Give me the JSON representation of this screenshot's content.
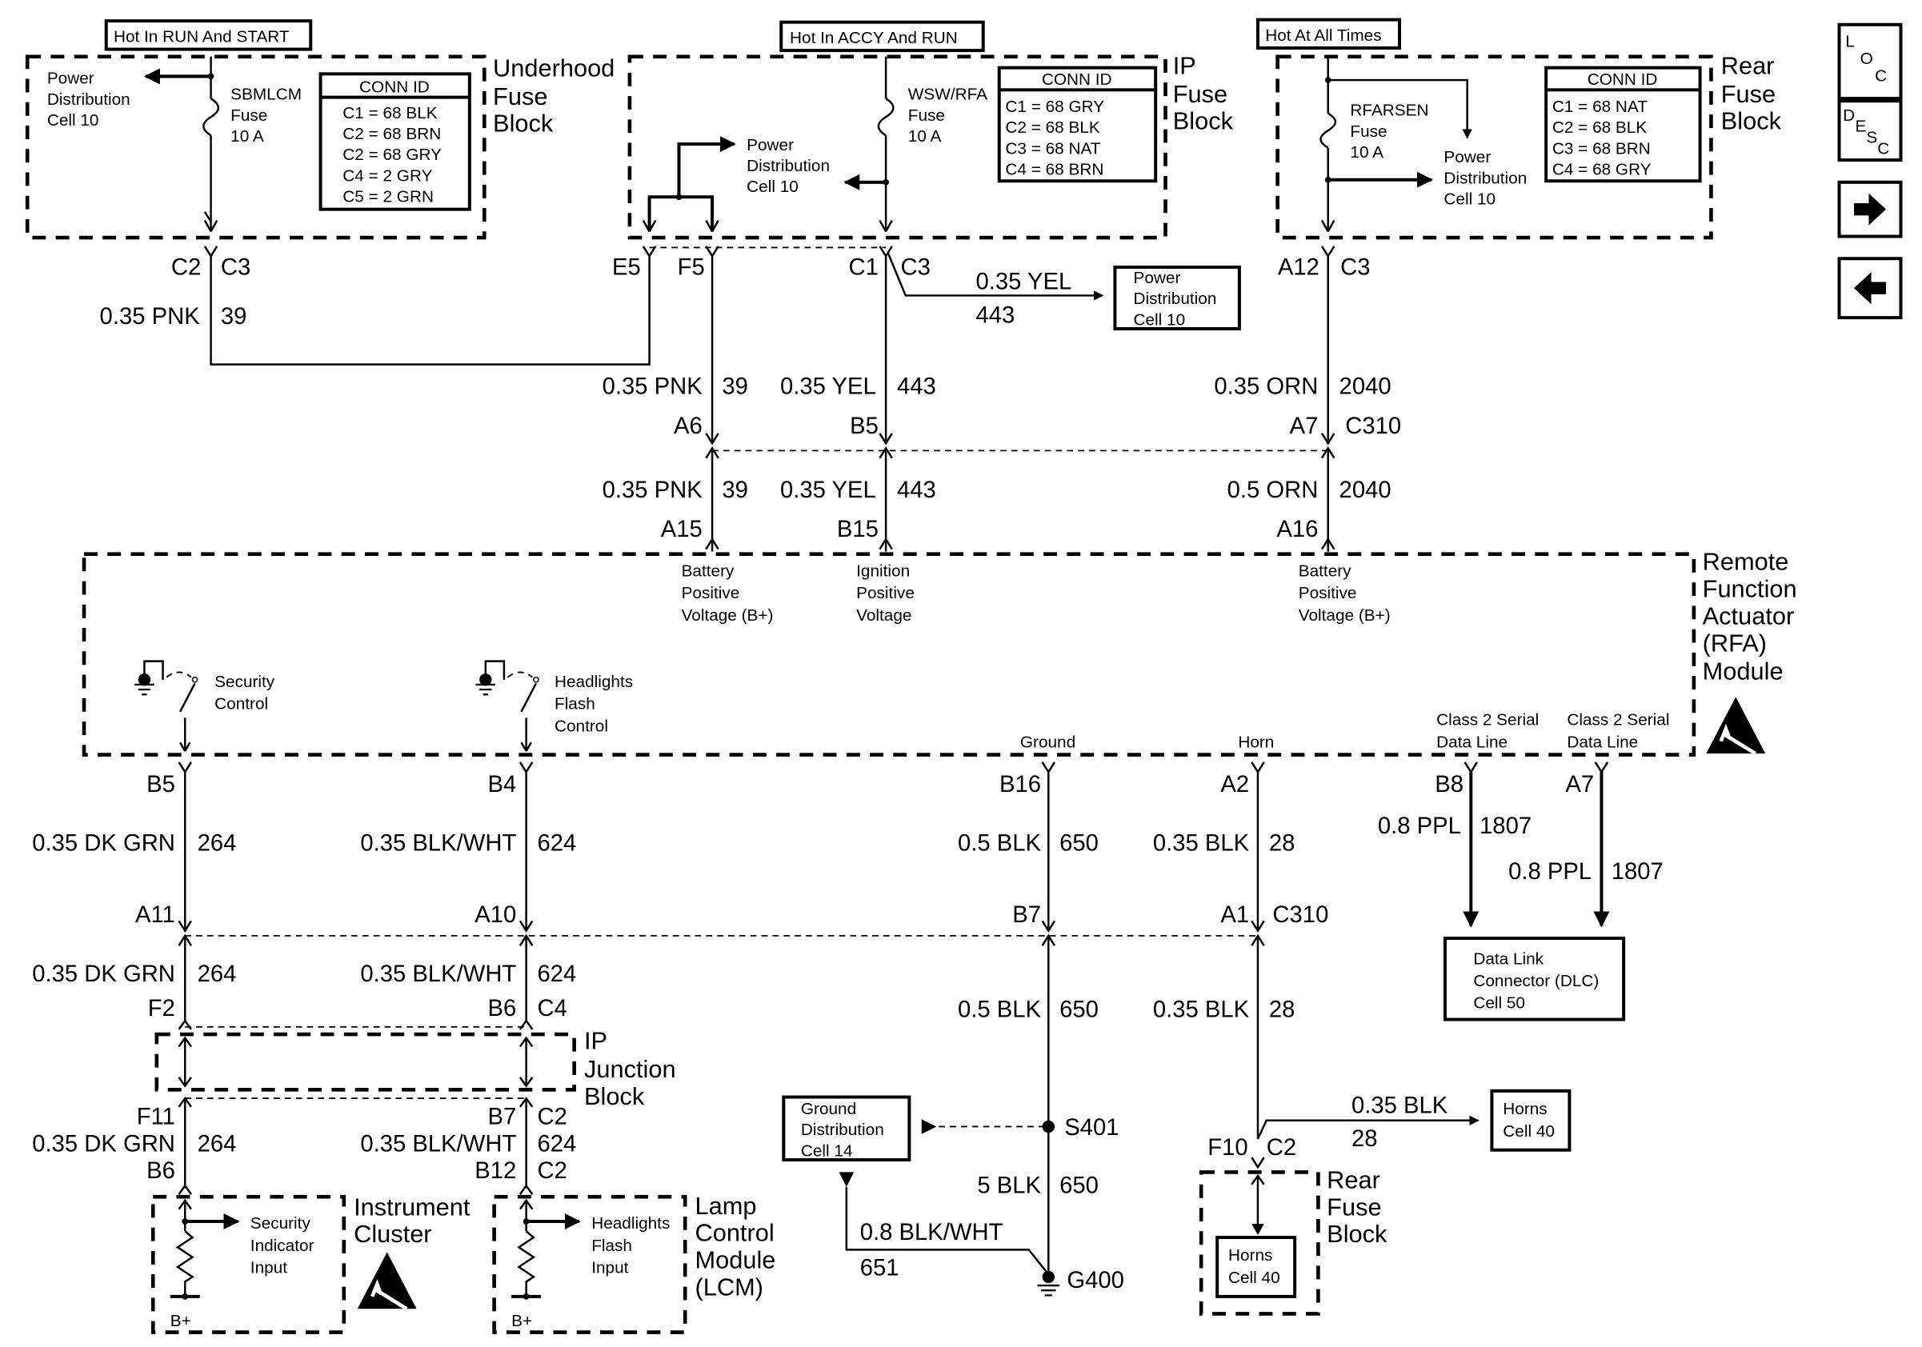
{
  "title_boxes": {
    "run_start": "Hot In RUN And START",
    "accy_run": "Hot In ACCY And RUN",
    "all_times": "Hot At All Times"
  },
  "underhood": {
    "title": [
      "Underhood",
      "Fuse",
      "Block"
    ],
    "pd": [
      "Power",
      "Distribution",
      "Cell 10"
    ],
    "fuse": [
      "SBMLCM",
      "Fuse",
      "10 A"
    ],
    "conn_header": "CONN ID",
    "conn": [
      "C1 = 68 BLK",
      "C2 = 68 BRN",
      "C2 = 68 GRY",
      "C4 = 2 GRY",
      "C5 = 2 GRN"
    ]
  },
  "ip_fuse": {
    "title": [
      "IP",
      "Fuse",
      "Block"
    ],
    "pd": [
      "Power",
      "Distribution",
      "Cell 10"
    ],
    "fuse": [
      "WSW/RFA",
      "Fuse",
      "10 A"
    ],
    "conn_header": "CONN ID",
    "conn": [
      "C1 = 68 GRY",
      "C2 = 68 BLK",
      "C3 = 68 NAT",
      "C4 = 68 BRN"
    ]
  },
  "rear_fuse": {
    "title": [
      "Rear",
      "Fuse",
      "Block"
    ],
    "pd": [
      "Power",
      "Distribution",
      "Cell 10"
    ],
    "fuse": [
      "RFARSEN",
      "Fuse",
      "10 A"
    ],
    "conn_header": "CONN ID",
    "conn": [
      "C1 = 68 NAT",
      "C2 = 68 BLK",
      "C3 = 68 BRN",
      "C4 = 68 GRY"
    ]
  },
  "nav": {
    "loc": [
      "L",
      "O",
      "C"
    ],
    "desc": [
      "D",
      "E",
      "S",
      "C"
    ],
    "next_icon": "arrow-right",
    "prev_icon": "arrow-left"
  },
  "pd_cell10": [
    "Power",
    "Distribution",
    "Cell 10"
  ],
  "connectors": {
    "c2": "C2",
    "c3": "C3",
    "e5": "E5",
    "f5": "F5",
    "c1": "C1",
    "a12": "A12",
    "a6": "A6",
    "b5": "B5",
    "a7": "A7",
    "c310": "C310",
    "a15": "A15",
    "b15": "B15",
    "a16": "A16",
    "b4": "B4",
    "b16": "B16",
    "a2": "A2",
    "b8": "B8",
    "a11": "A11",
    "a10": "A10",
    "b7": "B7",
    "a1": "A1",
    "f2": "F2",
    "b6": "B6",
    "c4": "C4",
    "f11": "F11",
    "b12": "B12",
    "f10": "F10",
    "s401": "S401",
    "g400": "G400"
  },
  "wires": {
    "pnk": "0.35 PNK",
    "n39": "39",
    "yel": "0.35 YEL",
    "n443": "443",
    "orn035": "0.35 ORN",
    "orn05": "0.5 ORN",
    "n2040": "2040",
    "dkgrn": "0.35 DK GRN",
    "n264": "264",
    "blkwht": "0.35 BLK/WHT",
    "n624": "624",
    "blk05": "0.5 BLK",
    "n650": "650",
    "blk035": "0.35 BLK",
    "n28": "28",
    "ppl": "0.8 PPL",
    "n1807": "1807",
    "blk5": "5 BLK",
    "blkwht08": "0.8 BLK/WHT",
    "n651": "651"
  },
  "rfa": {
    "title": [
      "Remote",
      "Function",
      "Actuator",
      "(RFA)",
      "Module"
    ],
    "bat": [
      "Battery",
      "Positive",
      "Voltage (B+)"
    ],
    "ign": [
      "Ignition",
      "Positive",
      "Voltage"
    ],
    "sec": [
      "Security",
      "Control"
    ],
    "hl": [
      "Headlights",
      "Flash",
      "Control"
    ],
    "ground": "Ground",
    "horn": "Horn",
    "class2": [
      "Class 2 Serial",
      "Data Line"
    ]
  },
  "ip_junction": {
    "title": [
      "IP",
      "Junction",
      "Block"
    ]
  },
  "ic": {
    "title": [
      "Instrument",
      "Cluster"
    ],
    "input": [
      "Security",
      "Indicator",
      "Input"
    ],
    "bplus": "B+"
  },
  "lcm": {
    "title": [
      "Lamp",
      "Control",
      "Module",
      "(LCM)"
    ],
    "input": [
      "Headlights",
      "Flash",
      "Input"
    ],
    "bplus": "B+"
  },
  "dlc": [
    "Data Link",
    "Connector (DLC)",
    "Cell 50"
  ],
  "ground_dist": [
    "Ground",
    "Distribution",
    "Cell 14"
  ],
  "horns": [
    "Horns",
    "Cell 40"
  ],
  "rear_fuse_bottom": [
    "Rear",
    "Fuse",
    "Block"
  ]
}
